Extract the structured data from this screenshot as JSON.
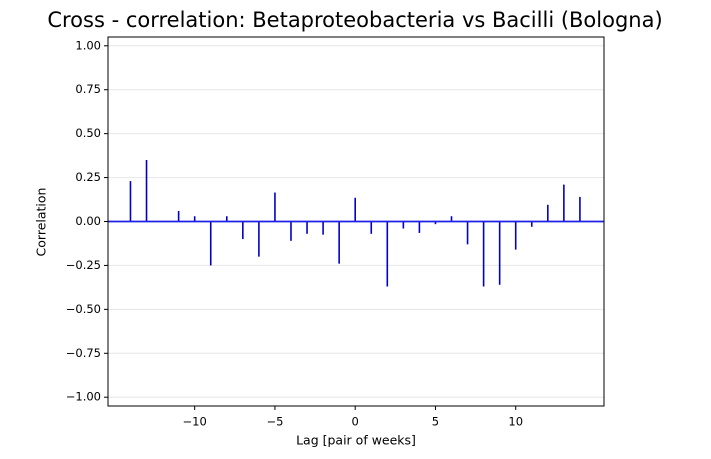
{
  "chart_data": {
    "type": "stem",
    "title": "Cross - correlation: Betaproteobacteria vs Bacilli (Bologna)",
    "xlabel": "Lag [pair of weeks]",
    "ylabel": "Correlation",
    "x": [
      -14,
      -13,
      -12,
      -11,
      -10,
      -9,
      -8,
      -7,
      -6,
      -5,
      -4,
      -3,
      -2,
      -1,
      0,
      1,
      2,
      3,
      4,
      5,
      6,
      7,
      8,
      9,
      10,
      11,
      12,
      13,
      14
    ],
    "values": [
      0.23,
      0.35,
      0.0,
      0.06,
      0.03,
      -0.25,
      0.03,
      -0.1,
      -0.2,
      0.165,
      -0.11,
      -0.07,
      -0.075,
      -0.24,
      0.135,
      -0.07,
      -0.37,
      -0.04,
      -0.065,
      -0.015,
      0.03,
      -0.13,
      -0.37,
      -0.36,
      -0.16,
      -0.03,
      0.095,
      0.21,
      0.14
    ],
    "color": "#0000c8",
    "baseline_color": "#1f1fe6",
    "xlim": [
      -15.4,
      15.5
    ],
    "xticks": [
      {
        "value": -10,
        "label": "−10"
      },
      {
        "value": -5,
        "label": "−5"
      },
      0,
      5,
      10
    ],
    "ylim": [
      -1.05,
      1.05
    ],
    "yticks": [
      {
        "value": -1,
        "label": "−1.00"
      },
      {
        "value": -0.75,
        "label": "−0.75"
      },
      {
        "value": -0.5,
        "label": "−0.50"
      },
      {
        "value": -0.25,
        "label": "−0.25"
      },
      {
        "value": 0,
        "label": "0.00"
      },
      0.25,
      {
        "value": 0.5,
        "label": "0.50"
      },
      0.75,
      {
        "value": 1,
        "label": "1.00"
      }
    ],
    "grid": true
  }
}
